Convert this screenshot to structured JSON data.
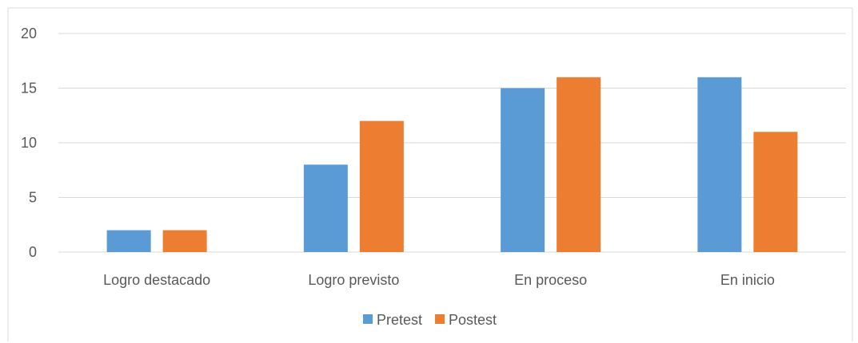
{
  "chart_data": {
    "type": "bar",
    "title": "",
    "xlabel": "",
    "ylabel": "",
    "categories": [
      "Logro destacado",
      "Logro previsto",
      "En proceso",
      "En inicio"
    ],
    "series": [
      {
        "name": "Pretest",
        "values": [
          2,
          8,
          15,
          16
        ],
        "color": "#5b9bd5"
      },
      {
        "name": "Postest",
        "values": [
          2,
          12,
          16,
          11
        ],
        "color": "#ed7d31"
      }
    ],
    "ylim": [
      0,
      20
    ],
    "yticks": [
      0,
      5,
      10,
      15,
      20
    ],
    "grid": true,
    "legend_position": "bottom"
  }
}
